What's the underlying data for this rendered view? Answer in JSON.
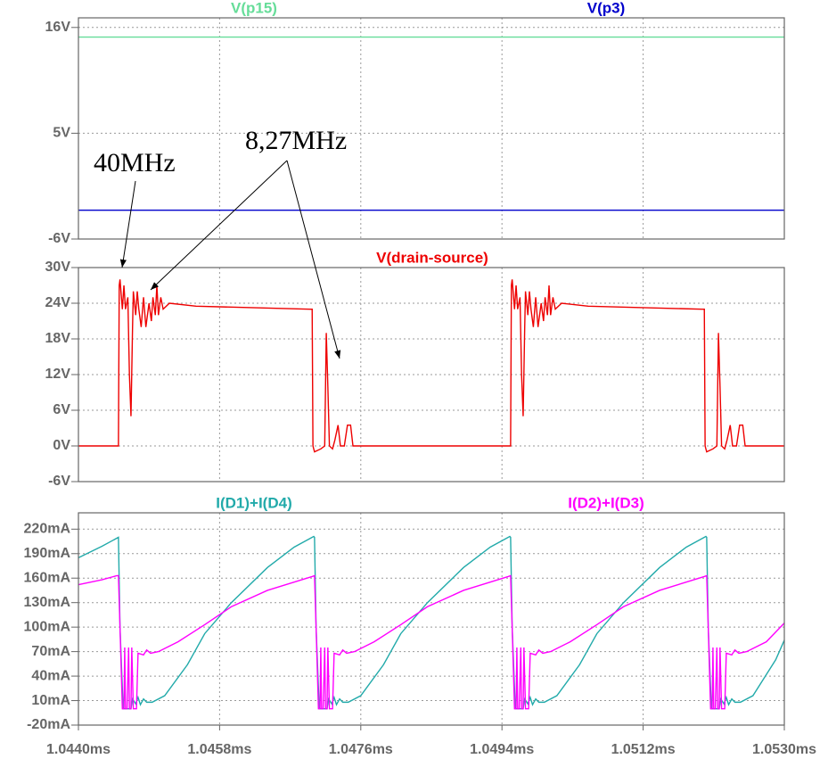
{
  "chart_data": [
    {
      "type": "line",
      "ylim": [
        -6,
        17
      ],
      "yticks": [
        {
          "value": 16,
          "label": "16V"
        },
        {
          "value": 5,
          "label": "5V"
        },
        {
          "value": -6,
          "label": "-6V"
        }
      ],
      "grid": true,
      "series": [
        {
          "name": "V(p15)",
          "color": "#66dd99",
          "x": [
            1.044,
            1.053
          ],
          "values": [
            15,
            15
          ]
        },
        {
          "name": "V(p3)",
          "color": "#0000cc",
          "x": [
            1.044,
            1.053
          ],
          "values": [
            -3,
            -3
          ]
        }
      ]
    },
    {
      "type": "line",
      "ylim": [
        -6,
        30
      ],
      "yticks": [
        {
          "value": 30,
          "label": "30V"
        },
        {
          "value": 24,
          "label": "24V"
        },
        {
          "value": 18,
          "label": "18V"
        },
        {
          "value": 12,
          "label": "12V"
        },
        {
          "value": 6,
          "label": "6V"
        },
        {
          "value": 0,
          "label": "0V"
        },
        {
          "value": -6,
          "label": "-6V"
        }
      ],
      "grid": true,
      "annotations": [
        "40MHz",
        "8,27MHz"
      ],
      "series": [
        {
          "name": "V(drain-source)",
          "color": "#ee0000",
          "x": [
            1.044,
            1.04451,
            1.04452,
            1.04453,
            1.04456,
            1.04458,
            1.0446,
            1.04463,
            1.04465,
            1.04467,
            1.04469,
            1.0447,
            1.04473,
            1.04475,
            1.04477,
            1.0448,
            1.04483,
            1.04486,
            1.0449,
            1.04493,
            1.04495,
            1.04498,
            1.045,
            1.04502,
            1.04505,
            1.04508,
            1.04516,
            1.0455,
            1.04695,
            1.04698,
            1.04699,
            1.04701,
            1.04709,
            1.04714,
            1.04716,
            1.04718,
            1.0472,
            1.04724,
            1.04727,
            1.04731,
            1.04734,
            1.04739,
            1.04743,
            1.04747,
            1.0475,
            1.04951,
            1.04952,
            1.04953,
            1.04956,
            1.04958,
            1.0496,
            1.04963,
            1.04965,
            1.04967,
            1.04969,
            1.0497,
            1.04973,
            1.04975,
            1.04977,
            1.0498,
            1.04983,
            1.04986,
            1.0499,
            1.04993,
            1.04995,
            1.04998,
            1.05,
            1.05002,
            1.05005,
            1.05008,
            1.05016,
            1.0505,
            1.05195,
            1.05198,
            1.05199,
            1.05201,
            1.05209,
            1.05214,
            1.05216,
            1.05218,
            1.0522,
            1.05224,
            1.05227,
            1.05231,
            1.05234,
            1.05239,
            1.05243,
            1.05247,
            1.0525,
            1.053
          ],
          "values": [
            0,
            0,
            27,
            28,
            23,
            27,
            23,
            25,
            12,
            5,
            20,
            26,
            22,
            26,
            23,
            20,
            25,
            20,
            24,
            21,
            25,
            22,
            27,
            22,
            25,
            23,
            24,
            23.5,
            23,
            23,
            0,
            -1,
            -0.5,
            0,
            19,
            10,
            0,
            -0.5,
            1,
            3.5,
            0,
            0,
            3.5,
            3.5,
            0,
            0,
            27,
            28,
            23,
            27,
            23,
            25,
            12,
            5,
            20,
            26,
            22,
            26,
            23,
            20,
            25,
            20,
            24,
            21,
            25,
            22,
            27,
            22,
            25,
            23,
            24,
            23.5,
            23,
            23,
            0,
            -1,
            -0.5,
            0,
            19,
            10,
            0,
            -0.5,
            1,
            3.5,
            0,
            0,
            3.5,
            3.5,
            0,
            0
          ]
        }
      ]
    },
    {
      "type": "line",
      "xlim": [
        1.044,
        1.053
      ],
      "xticks": [
        {
          "value": 1.044,
          "label": "1.0440ms"
        },
        {
          "value": 1.0458,
          "label": "1.0458ms"
        },
        {
          "value": 1.0476,
          "label": "1.0476ms"
        },
        {
          "value": 1.0494,
          "label": "1.0494ms"
        },
        {
          "value": 1.0512,
          "label": "1.0512ms"
        },
        {
          "value": 1.053,
          "label": "1.0530ms"
        }
      ],
      "ylim": [
        -20,
        240
      ],
      "yticks": [
        {
          "value": 220,
          "label": "220mA"
        },
        {
          "value": 190,
          "label": "190mA"
        },
        {
          "value": 160,
          "label": "160mA"
        },
        {
          "value": 130,
          "label": "130mA"
        },
        {
          "value": 100,
          "label": "100mA"
        },
        {
          "value": 70,
          "label": "70mA"
        },
        {
          "value": 40,
          "label": "40mA"
        },
        {
          "value": 10,
          "label": "10mA"
        },
        {
          "value": -20,
          "label": "-20mA"
        }
      ],
      "grid": true,
      "series": [
        {
          "name": "I(D1)+I(D4)",
          "color": "#22aaaa",
          "x": [
            1.044,
            1.0443,
            1.04451,
            1.04453,
            1.04457,
            1.04467,
            1.04469,
            1.04473,
            1.04476,
            1.04479,
            1.04483,
            1.04487,
            1.04494,
            1.0451,
            1.04539,
            1.04561,
            1.04595,
            1.04641,
            1.04675,
            1.047,
            1.04701,
            1.04703,
            1.04707,
            1.04717,
            1.04719,
            1.04723,
            1.04726,
            1.04729,
            1.04733,
            1.04737,
            1.04744,
            1.0476,
            1.04789,
            1.04811,
            1.04845,
            1.04891,
            1.04925,
            1.0495,
            1.04951,
            1.04953,
            1.04957,
            1.04967,
            1.04969,
            1.04973,
            1.04976,
            1.04979,
            1.04983,
            1.04987,
            1.04994,
            1.0501,
            1.05039,
            1.05061,
            1.05095,
            1.05141,
            1.05175,
            1.052,
            1.05201,
            1.05203,
            1.05207,
            1.05217,
            1.05219,
            1.05223,
            1.05226,
            1.05229,
            1.05233,
            1.05237,
            1.05244,
            1.0526,
            1.05289,
            1.053
          ],
          "values": [
            185,
            199,
            210,
            100,
            0,
            0,
            12,
            6,
            14,
            5,
            12,
            8,
            8,
            16,
            54,
            92,
            130,
            173,
            198,
            211,
            210,
            100,
            0,
            0,
            12,
            6,
            14,
            5,
            12,
            8,
            8,
            16,
            54,
            92,
            130,
            173,
            198,
            211,
            210,
            100,
            0,
            0,
            12,
            6,
            14,
            5,
            12,
            8,
            8,
            16,
            54,
            92,
            130,
            173,
            198,
            211,
            210,
            100,
            0,
            0,
            12,
            6,
            14,
            5,
            12,
            8,
            8,
            16,
            60,
            84
          ]
        },
        {
          "name": "I(D2)+I(D3)",
          "color": "#ff00ff",
          "x": [
            1.044,
            1.0443,
            1.04449,
            1.04451,
            1.04453,
            1.04456,
            1.04458,
            1.04459,
            1.0446,
            1.04462,
            1.04464,
            1.04465,
            1.04467,
            1.04468,
            1.0447,
            1.04474,
            1.04476,
            1.04483,
            1.04487,
            1.04492,
            1.04502,
            1.04527,
            1.04561,
            1.04595,
            1.04641,
            1.04698,
            1.04701,
            1.04703,
            1.04706,
            1.04708,
            1.04709,
            1.0471,
            1.04712,
            1.04714,
            1.04715,
            1.04717,
            1.04718,
            1.0472,
            1.04724,
            1.04726,
            1.04733,
            1.04737,
            1.04742,
            1.04752,
            1.04777,
            1.04811,
            1.04845,
            1.04891,
            1.04948,
            1.04951,
            1.04953,
            1.04956,
            1.04958,
            1.04959,
            1.0496,
            1.04962,
            1.04964,
            1.04965,
            1.04967,
            1.04968,
            1.0497,
            1.04974,
            1.04976,
            1.04983,
            1.04987,
            1.04992,
            1.05002,
            1.05027,
            1.05061,
            1.05095,
            1.05141,
            1.05198,
            1.05201,
            1.05203,
            1.05206,
            1.05208,
            1.05209,
            1.0521,
            1.05212,
            1.05214,
            1.05215,
            1.05217,
            1.05218,
            1.0522,
            1.05224,
            1.05226,
            1.05233,
            1.05237,
            1.05242,
            1.05252,
            1.05277,
            1.053
          ],
          "values": [
            152,
            158,
            163,
            163,
            100,
            0,
            0,
            75,
            0,
            0,
            75,
            0,
            0,
            75,
            0,
            0,
            68,
            66,
            72,
            68,
            70,
            82,
            103,
            125,
            145,
            162,
            163,
            100,
            0,
            0,
            75,
            0,
            0,
            75,
            0,
            0,
            75,
            0,
            0,
            68,
            66,
            72,
            68,
            70,
            82,
            103,
            125,
            145,
            162,
            163,
            100,
            0,
            0,
            75,
            0,
            0,
            75,
            0,
            0,
            75,
            0,
            0,
            68,
            66,
            72,
            68,
            70,
            82,
            103,
            125,
            145,
            162,
            163,
            100,
            0,
            0,
            75,
            0,
            0,
            75,
            0,
            0,
            75,
            0,
            0,
            68,
            66,
            72,
            68,
            70,
            82,
            105
          ]
        }
      ]
    }
  ]
}
